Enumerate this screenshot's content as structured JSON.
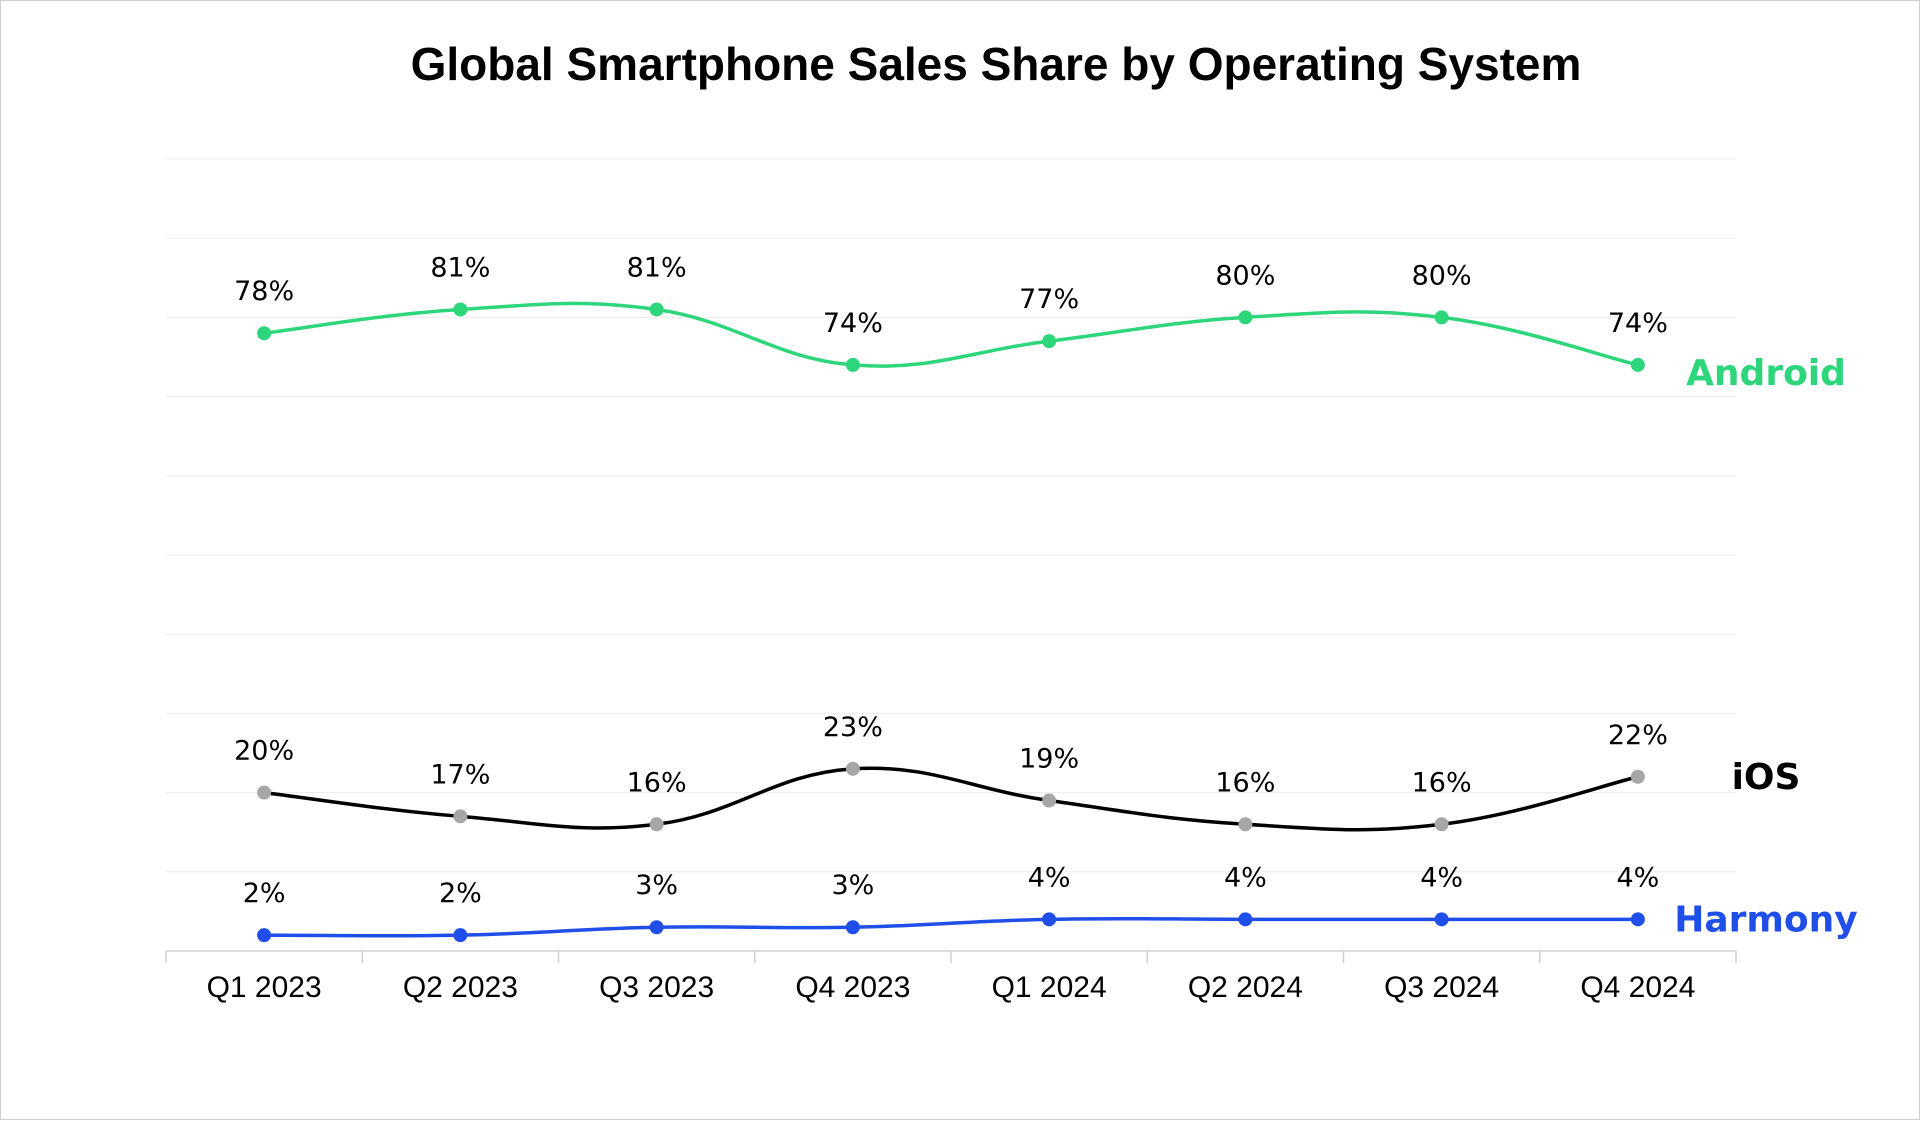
{
  "chart_data": {
    "type": "line",
    "title": "Global Smartphone Sales Share by Operating System",
    "xlabel": "",
    "ylabel": "",
    "ylim": [
      0,
      100
    ],
    "grid": true,
    "legend": "series labels at right end of lines",
    "categories": [
      "Q1 2023",
      "Q2 2023",
      "Q3 2023",
      "Q4 2023",
      "Q1 2024",
      "Q2 2024",
      "Q3 2024",
      "Q4 2024"
    ],
    "series": [
      {
        "name": "Android",
        "color": "#2ed67b",
        "marker_color": "#2ed67b",
        "values": [
          78,
          81,
          81,
          74,
          77,
          80,
          80,
          74
        ],
        "labels": [
          "78%",
          "81%",
          "81%",
          "74%",
          "77%",
          "80%",
          "80%",
          "74%"
        ]
      },
      {
        "name": "iOS",
        "color": "#000000",
        "marker_color": "#a6a6a6",
        "values": [
          20,
          17,
          16,
          23,
          19,
          16,
          16,
          22
        ],
        "labels": [
          "20%",
          "17%",
          "16%",
          "23%",
          "19%",
          "16%",
          "16%",
          "22%"
        ]
      },
      {
        "name": "Harmony",
        "color": "#1f4fe8",
        "marker_color": "#1f4fe8",
        "values": [
          2,
          2,
          3,
          3,
          4,
          4,
          4,
          4
        ],
        "labels": [
          "2%",
          "2%",
          "3%",
          "3%",
          "4%",
          "4%",
          "4%",
          "4%"
        ]
      }
    ]
  }
}
